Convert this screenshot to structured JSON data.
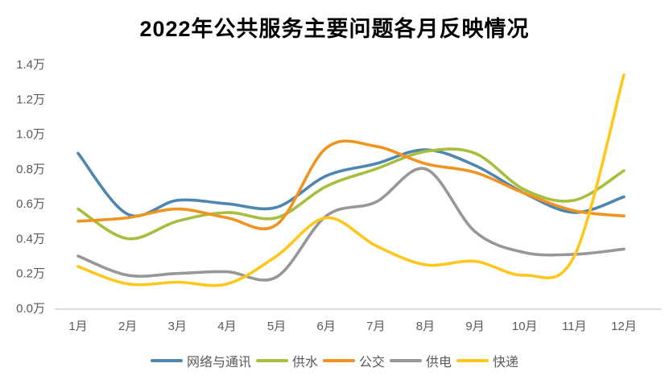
{
  "chart_data": {
    "type": "line",
    "title": "2022年公共服务主要问题各月反映情况",
    "unit": "万",
    "smooth": true,
    "grid": false,
    "legend_position": "bottom",
    "categories": [
      "1月",
      "2月",
      "3月",
      "4月",
      "5月",
      "6月",
      "7月",
      "8月",
      "9月",
      "10月",
      "11月",
      "12月"
    ],
    "y_ticks": [
      "0.0万",
      "0.2万",
      "0.4万",
      "0.6万",
      "0.8万",
      "1.0万",
      "1.2万",
      "1.4万"
    ],
    "ylim": [
      0,
      1.4
    ],
    "series": [
      {
        "name": "网络与通讯",
        "color": "#4E86B0",
        "values": [
          0.89,
          0.54,
          0.62,
          0.6,
          0.58,
          0.76,
          0.83,
          0.91,
          0.82,
          0.66,
          0.55,
          0.64
        ]
      },
      {
        "name": "供水",
        "color": "#A6BF3E",
        "values": [
          0.57,
          0.4,
          0.5,
          0.55,
          0.52,
          0.7,
          0.8,
          0.9,
          0.89,
          0.68,
          0.62,
          0.79
        ]
      },
      {
        "name": "公交",
        "color": "#F0941F",
        "values": [
          0.5,
          0.52,
          0.57,
          0.52,
          0.48,
          0.92,
          0.93,
          0.83,
          0.78,
          0.66,
          0.56,
          0.53
        ]
      },
      {
        "name": "供电",
        "color": "#979797",
        "values": [
          0.3,
          0.19,
          0.2,
          0.21,
          0.18,
          0.53,
          0.61,
          0.8,
          0.44,
          0.32,
          0.31,
          0.34
        ]
      },
      {
        "name": "快递",
        "color": "#FFC61E",
        "values": [
          0.24,
          0.14,
          0.15,
          0.14,
          0.3,
          0.52,
          0.36,
          0.25,
          0.27,
          0.19,
          0.3,
          1.34
        ]
      }
    ],
    "colors": {
      "axis_line": "#D9D9D9",
      "tick_text": "#595959",
      "title_text": "#000000"
    }
  }
}
